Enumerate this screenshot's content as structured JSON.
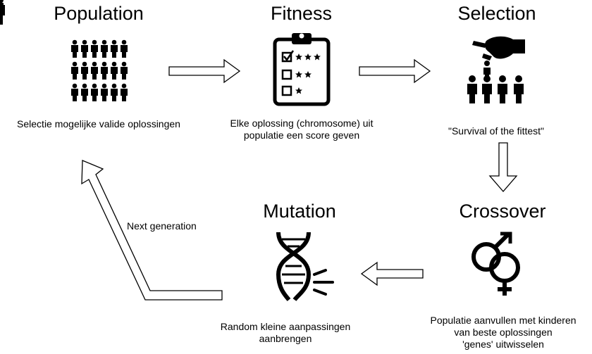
{
  "stages": {
    "population": {
      "title": "Population",
      "description": [
        "Selectie mogelijke valide oplossingen"
      ],
      "icon": "crowd-icon"
    },
    "fitness": {
      "title": "Fitness",
      "description": [
        "Elke oplossing (chromosome) uit",
        "populatie een score geven"
      ],
      "icon": "clipboard-rating-icon"
    },
    "selection": {
      "title": "Selection",
      "description": [
        "\"Survival of the fittest\""
      ],
      "icon": "hand-picking-person-icon"
    },
    "crossover": {
      "title": "Crossover",
      "description": [
        "Populatie aanvullen met kinderen",
        "van beste oplossingen",
        "'genes' uitwisselen"
      ],
      "icon": "gender-symbols-icon"
    },
    "mutation": {
      "title": "Mutation",
      "description": [
        "Random kleine aanpassingen",
        "aanbrengen"
      ],
      "icon": "broken-dna-icon"
    }
  },
  "loop_label": "Next generation",
  "colors": {
    "ink": "#000000",
    "background": "#ffffff"
  }
}
